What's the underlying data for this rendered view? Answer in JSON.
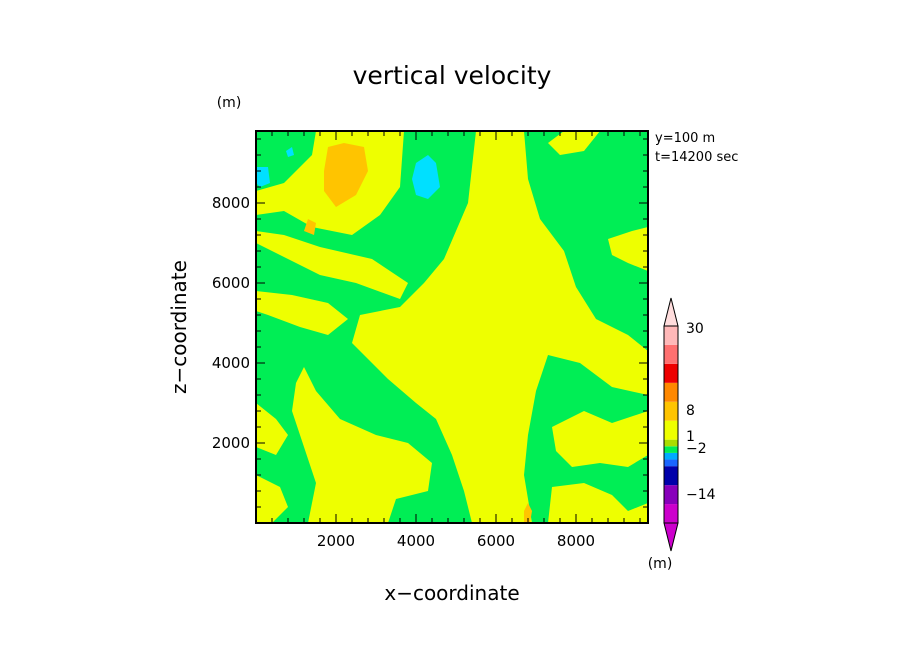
{
  "chart_data": {
    "type": "heatmap",
    "title": "vertical velocity",
    "xlabel": "x−coordinate",
    "ylabel": "z−coordinate",
    "x_unit": "(m)",
    "y_unit": "(m)",
    "xlim": [
      0,
      9800
    ],
    "ylim": [
      0,
      9800
    ],
    "x_ticks": [
      {
        "value": 2000,
        "label": "2000"
      },
      {
        "value": 4000,
        "label": "4000"
      },
      {
        "value": 6000,
        "label": "6000"
      },
      {
        "value": 8000,
        "label": "8000"
      }
    ],
    "y_ticks": [
      {
        "value": 2000,
        "label": "2000"
      },
      {
        "value": 4000,
        "label": "4000"
      },
      {
        "value": 6000,
        "label": "6000"
      },
      {
        "value": 8000,
        "label": "8000"
      }
    ],
    "annotations": [
      "y=100  m",
      "t=14200 sec"
    ],
    "background_level_color": "#00ee55",
    "regions": [
      {
        "level": "0 to 1",
        "color": "#eeff00",
        "points": [
          [
            4200,
            6000
          ],
          [
            4700,
            6600
          ],
          [
            5300,
            8000
          ],
          [
            5500,
            9800
          ],
          [
            6700,
            9800
          ],
          [
            6800,
            8600
          ],
          [
            7100,
            7600
          ],
          [
            7700,
            6800
          ],
          [
            8000,
            5900
          ],
          [
            8500,
            5100
          ],
          [
            9300,
            4700
          ],
          [
            9800,
            4300
          ],
          [
            9800,
            3200
          ],
          [
            8900,
            3400
          ],
          [
            8100,
            4000
          ],
          [
            7300,
            4200
          ],
          [
            7000,
            3300
          ],
          [
            6800,
            2200
          ],
          [
            6700,
            1200
          ],
          [
            6900,
            0
          ],
          [
            5400,
            0
          ],
          [
            5200,
            800
          ],
          [
            4900,
            1700
          ],
          [
            4500,
            2600
          ],
          [
            4000,
            3000
          ],
          [
            3300,
            3600
          ],
          [
            2400,
            4500
          ],
          [
            2600,
            5200
          ],
          [
            3600,
            5400
          ]
        ]
      },
      {
        "level": "0 to 1",
        "color": "#eeff00",
        "points": [
          [
            0,
            8300
          ],
          [
            700,
            8500
          ],
          [
            1400,
            9200
          ],
          [
            1500,
            9800
          ],
          [
            3700,
            9800
          ],
          [
            3600,
            8400
          ],
          [
            3100,
            7700
          ],
          [
            2400,
            7200
          ],
          [
            1400,
            7400
          ],
          [
            700,
            7800
          ],
          [
            0,
            7700
          ]
        ]
      },
      {
        "level": "0 to 1",
        "color": "#eeff00",
        "points": [
          [
            0,
            7000
          ],
          [
            800,
            6600
          ],
          [
            1600,
            6200
          ],
          [
            2500,
            6000
          ],
          [
            3600,
            5600
          ],
          [
            3800,
            6000
          ],
          [
            2900,
            6600
          ],
          [
            1600,
            6900
          ],
          [
            700,
            7200
          ],
          [
            0,
            7300
          ]
        ]
      },
      {
        "level": "0 to 1",
        "color": "#eeff00",
        "points": [
          [
            0,
            5800
          ],
          [
            900,
            5700
          ],
          [
            1800,
            5500
          ],
          [
            2300,
            5100
          ],
          [
            1800,
            4700
          ],
          [
            1100,
            4900
          ],
          [
            300,
            5200
          ],
          [
            0,
            5300
          ]
        ]
      },
      {
        "level": "0 to 1",
        "color": "#eeff00",
        "points": [
          [
            1200,
            3900
          ],
          [
            1500,
            3300
          ],
          [
            2100,
            2600
          ],
          [
            3000,
            2200
          ],
          [
            3800,
            2000
          ],
          [
            4400,
            1500
          ],
          [
            4300,
            800
          ],
          [
            3500,
            600
          ],
          [
            3300,
            0
          ],
          [
            1300,
            0
          ],
          [
            1500,
            1000
          ],
          [
            1200,
            1900
          ],
          [
            900,
            2800
          ],
          [
            1000,
            3500
          ]
        ]
      },
      {
        "level": "0 to 1",
        "color": "#eeff00",
        "points": [
          [
            0,
            3000
          ],
          [
            500,
            2600
          ],
          [
            800,
            2200
          ],
          [
            500,
            1700
          ],
          [
            0,
            1900
          ]
        ]
      },
      {
        "level": "0 to 1",
        "color": "#eeff00",
        "points": [
          [
            7400,
            2400
          ],
          [
            8200,
            2800
          ],
          [
            8900,
            2500
          ],
          [
            9800,
            2800
          ],
          [
            9800,
            1700
          ],
          [
            9300,
            1400
          ],
          [
            8600,
            1500
          ],
          [
            7900,
            1400
          ],
          [
            7500,
            1800
          ]
        ]
      },
      {
        "level": "0 to 1",
        "color": "#eeff00",
        "points": [
          [
            7400,
            900
          ],
          [
            8200,
            1000
          ],
          [
            8900,
            700
          ],
          [
            9300,
            300
          ],
          [
            9800,
            500
          ],
          [
            9800,
            0
          ],
          [
            7300,
            0
          ]
        ]
      },
      {
        "level": "0 to 1",
        "color": "#eeff00",
        "points": [
          [
            0,
            1200
          ],
          [
            600,
            900
          ],
          [
            800,
            400
          ],
          [
            400,
            0
          ],
          [
            0,
            0
          ]
        ]
      },
      {
        "level": "0 to 1",
        "color": "#eeff00",
        "points": [
          [
            8800,
            7100
          ],
          [
            9400,
            7300
          ],
          [
            9800,
            7400
          ],
          [
            9800,
            6300
          ],
          [
            9300,
            6500
          ],
          [
            8900,
            6700
          ]
        ]
      },
      {
        "level": "0 to 1",
        "color": "#eeff00",
        "points": [
          [
            7300,
            9500
          ],
          [
            7700,
            9800
          ],
          [
            8600,
            9800
          ],
          [
            8200,
            9300
          ],
          [
            7600,
            9200
          ]
        ]
      },
      {
        "level": "1 to 2",
        "color": "#ffc400",
        "points": [
          [
            1700,
            8800
          ],
          [
            1800,
            9400
          ],
          [
            2200,
            9500
          ],
          [
            2700,
            9400
          ],
          [
            2800,
            8800
          ],
          [
            2500,
            8200
          ],
          [
            2000,
            7900
          ],
          [
            1700,
            8300
          ]
        ]
      },
      {
        "level": "1 to 2",
        "color": "#ffc400",
        "points": [
          [
            1200,
            7300
          ],
          [
            1300,
            7600
          ],
          [
            1500,
            7500
          ],
          [
            1450,
            7200
          ]
        ]
      },
      {
        "level": "1 to 2",
        "color": "#ffc400",
        "points": [
          [
            6700,
            300
          ],
          [
            6800,
            500
          ],
          [
            6900,
            300
          ],
          [
            6850,
            0
          ],
          [
            6700,
            0
          ]
        ]
      },
      {
        "level": "-2 to -1",
        "color": "#00e0ff",
        "points": [
          [
            3900,
            8600
          ],
          [
            4000,
            9000
          ],
          [
            4300,
            9200
          ],
          [
            4500,
            9000
          ],
          [
            4600,
            8400
          ],
          [
            4300,
            8100
          ],
          [
            4000,
            8200
          ]
        ]
      },
      {
        "level": "-2 to -1",
        "color": "#00e0ff",
        "points": [
          [
            0,
            8900
          ],
          [
            300,
            8900
          ],
          [
            350,
            8500
          ],
          [
            100,
            8400
          ],
          [
            0,
            8500
          ]
        ]
      },
      {
        "level": "-2 to -1",
        "color": "#00e0ff",
        "points": [
          [
            750,
            9300
          ],
          [
            900,
            9400
          ],
          [
            950,
            9200
          ],
          [
            800,
            9150
          ]
        ]
      }
    ],
    "colorbar": {
      "unit": "(m)",
      "labels": [
        {
          "text": "30",
          "level_index": 8
        },
        {
          "text": "8",
          "level_index": 6
        },
        {
          "text": "1",
          "level_index": 5
        },
        {
          "text": "−2",
          "level_index": 4
        },
        {
          "text": "−14",
          "level_index": 2
        }
      ],
      "colors": [
        "#cc00cc",
        "#8800bb",
        "#0000aa",
        "#1a66ff",
        "#00aaff",
        "#00ee55",
        "#aadd00",
        "#eeff00",
        "#ffc400",
        "#ff8800",
        "#ee0000",
        "#ff7070",
        "#ffb8b8"
      ],
      "top_arrow_color": "#ffdddd",
      "bottom_arrow_color": "#cc00cc"
    }
  }
}
